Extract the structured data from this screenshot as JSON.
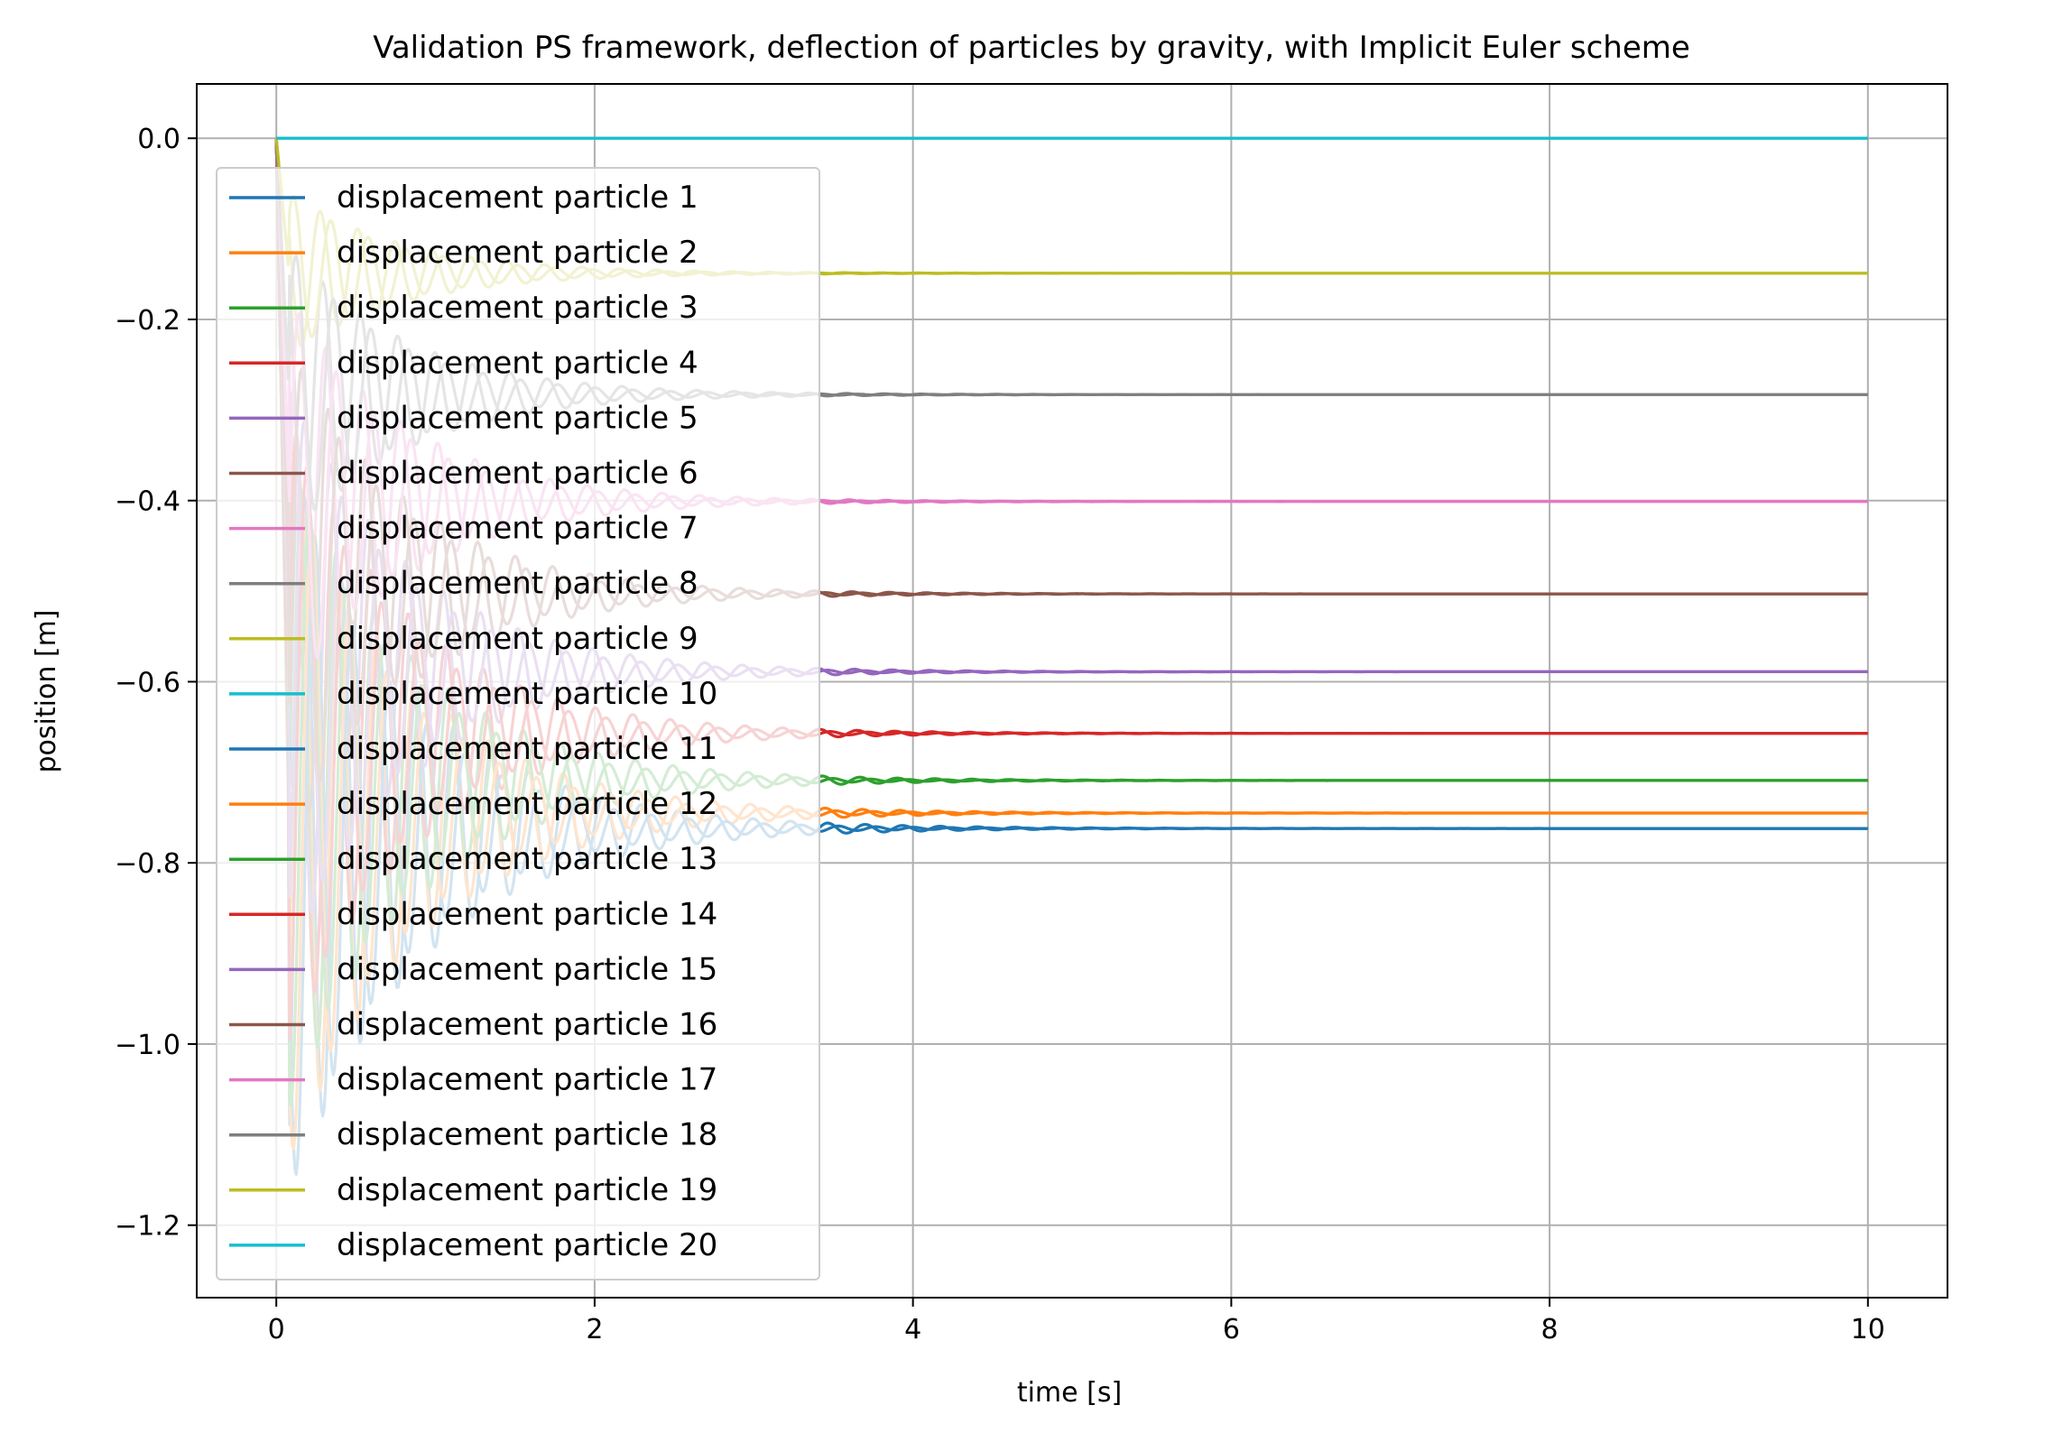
{
  "chart_data": {
    "type": "line",
    "title": "Validation PS framework, deflection of particles by gravity, with Implicit Euler scheme",
    "xlabel": "time [s]",
    "ylabel": "position [m]",
    "xlim": [
      -0.5,
      10.5
    ],
    "ylim": [
      -1.28,
      0.06
    ],
    "xticks": [
      0,
      2,
      4,
      6,
      8,
      10
    ],
    "xtick_labels": [
      "0",
      "2",
      "4",
      "6",
      "8",
      "10"
    ],
    "yticks": [
      0.0,
      -0.2,
      -0.4,
      -0.6,
      -0.8,
      -1.0,
      -1.2
    ],
    "ytick_labels": [
      "0.0",
      "−0.2",
      "−0.4",
      "−0.6",
      "−0.8",
      "−1.0",
      "−1.2"
    ],
    "grid": true,
    "legend_position": "upper-left",
    "x_range": [
      0,
      10
    ],
    "series": [
      {
        "name": "displacement particle 1",
        "color": "#1f77b4",
        "final": -0.762,
        "peak": -1.22
      },
      {
        "name": "displacement particle 2",
        "color": "#ff7f0e",
        "final": -0.745,
        "peak": -1.18
      },
      {
        "name": "displacement particle 3",
        "color": "#2ca02c",
        "final": -0.709,
        "peak": -1.12
      },
      {
        "name": "displacement particle 4",
        "color": "#d62728",
        "final": -0.657,
        "peak": -1.05
      },
      {
        "name": "displacement particle 5",
        "color": "#9467bd",
        "final": -0.589,
        "peak": -0.95
      },
      {
        "name": "displacement particle 6",
        "color": "#8c564b",
        "final": -0.503,
        "peak": -0.82
      },
      {
        "name": "displacement particle 7",
        "color": "#e377c2",
        "final": -0.401,
        "peak": -0.66
      },
      {
        "name": "displacement particle 8",
        "color": "#7f7f7f",
        "final": -0.283,
        "peak": -0.47
      },
      {
        "name": "displacement particle 9",
        "color": "#bcbd22",
        "final": -0.149,
        "peak": -0.25
      },
      {
        "name": "displacement particle 10",
        "color": "#17becf",
        "final": 0.0,
        "peak": 0.0
      },
      {
        "name": "displacement particle 11",
        "color": "#1f77b4",
        "final": -0.762,
        "peak": -1.22
      },
      {
        "name": "displacement particle 12",
        "color": "#ff7f0e",
        "final": -0.745,
        "peak": -1.18
      },
      {
        "name": "displacement particle 13",
        "color": "#2ca02c",
        "final": -0.709,
        "peak": -1.12
      },
      {
        "name": "displacement particle 14",
        "color": "#d62728",
        "final": -0.657,
        "peak": -1.05
      },
      {
        "name": "displacement particle 15",
        "color": "#9467bd",
        "final": -0.589,
        "peak": -0.95
      },
      {
        "name": "displacement particle 16",
        "color": "#8c564b",
        "final": -0.503,
        "peak": -0.82
      },
      {
        "name": "displacement particle 17",
        "color": "#e377c2",
        "final": -0.401,
        "peak": -0.66
      },
      {
        "name": "displacement particle 18",
        "color": "#7f7f7f",
        "final": -0.283,
        "peak": -0.47
      },
      {
        "name": "displacement particle 19",
        "color": "#bcbd22",
        "final": -0.149,
        "peak": -0.25
      },
      {
        "name": "displacement particle 20",
        "color": "#17becf",
        "final": 0.0,
        "peak": 0.0
      }
    ]
  }
}
